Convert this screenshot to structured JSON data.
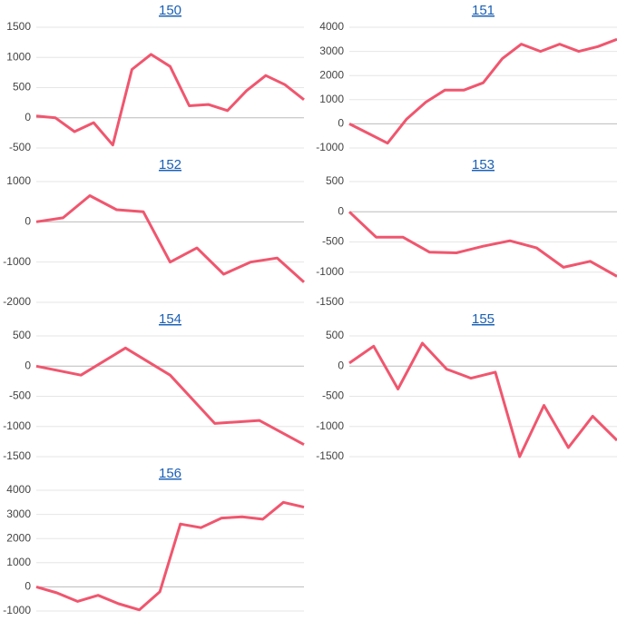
{
  "chart_data": [
    {
      "type": "line",
      "title": "150",
      "color": "#f0566e",
      "ylim": [
        -500,
        1500
      ],
      "yticks": [
        1500,
        1000,
        500,
        0,
        -500
      ],
      "values": [
        30,
        0,
        -230,
        -80,
        -450,
        800,
        1050,
        850,
        200,
        220,
        120,
        450,
        700,
        550,
        300
      ]
    },
    {
      "type": "line",
      "title": "151",
      "color": "#f0566e",
      "ylim": [
        -1000,
        4000
      ],
      "yticks": [
        4000,
        3000,
        2000,
        1000,
        0,
        -1000
      ],
      "values": [
        0,
        -400,
        -800,
        200,
        900,
        1400,
        1400,
        1700,
        2700,
        3300,
        3000,
        3300,
        3000,
        3200,
        3500
      ]
    },
    {
      "type": "line",
      "title": "152",
      "color": "#f0566e",
      "ylim": [
        -2000,
        1000
      ],
      "yticks": [
        1000,
        0,
        -1000,
        -2000
      ],
      "values": [
        0,
        100,
        650,
        300,
        250,
        -1000,
        -650,
        -1300,
        -1000,
        -900,
        -1500
      ]
    },
    {
      "type": "line",
      "title": "153",
      "color": "#f0566e",
      "ylim": [
        -1500,
        500
      ],
      "yticks": [
        500,
        0,
        -500,
        -1000,
        -1500
      ],
      "values": [
        0,
        -420,
        -420,
        -670,
        -680,
        -570,
        -480,
        -600,
        -920,
        -820,
        -1070
      ]
    },
    {
      "type": "line",
      "title": "154",
      "color": "#f0566e",
      "ylim": [
        -1500,
        500
      ],
      "yticks": [
        500,
        0,
        -500,
        -1000,
        -1500
      ],
      "values": [
        0,
        -150,
        300,
        -150,
        -950,
        -900,
        -1300
      ]
    },
    {
      "type": "line",
      "title": "155",
      "color": "#f0566e",
      "ylim": [
        -1500,
        500
      ],
      "yticks": [
        500,
        0,
        -500,
        -1000,
        -1500
      ],
      "values": [
        50,
        330,
        -380,
        380,
        -50,
        -200,
        -100,
        -1500,
        -650,
        -1350,
        -830,
        -1230
      ]
    },
    {
      "type": "line",
      "title": "156",
      "color": "#f0566e",
      "ylim": [
        -1000,
        4000
      ],
      "yticks": [
        4000,
        3000,
        2000,
        1000,
        0,
        -1000
      ],
      "values": [
        0,
        -250,
        -600,
        -350,
        -700,
        -950,
        -200,
        2600,
        2450,
        2850,
        2900,
        2800,
        3500,
        3300
      ]
    }
  ]
}
